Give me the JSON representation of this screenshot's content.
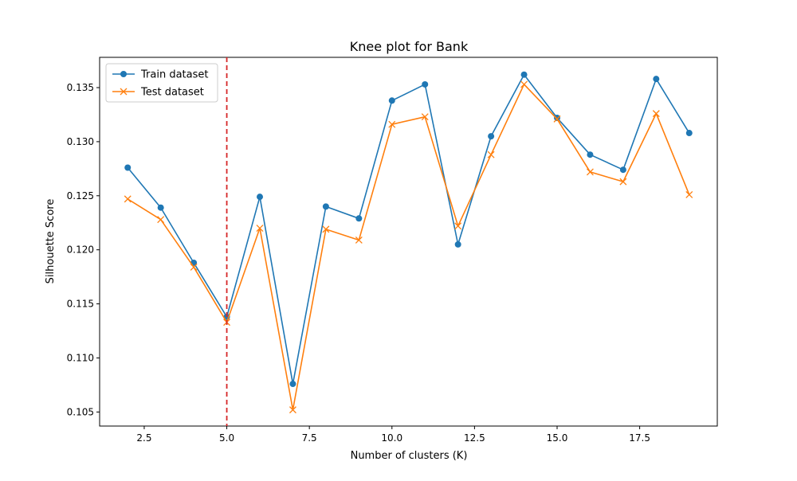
{
  "chart_data": {
    "type": "line",
    "title": "Knee plot for Bank",
    "xlabel": "Number of clusters (K)",
    "ylabel": "Silhouette Score",
    "xlim": [
      1.15,
      19.85
    ],
    "ylim": [
      0.1037,
      0.1378
    ],
    "xticks": [
      2.5,
      5.0,
      7.5,
      10.0,
      12.5,
      15.0,
      17.5
    ],
    "xtick_labels": [
      "2.5",
      "5.0",
      "7.5",
      "10.0",
      "12.5",
      "15.0",
      "17.5"
    ],
    "yticks": [
      0.105,
      0.11,
      0.115,
      0.12,
      0.125,
      0.13,
      0.135
    ],
    "ytick_labels": [
      "0.105",
      "0.110",
      "0.115",
      "0.120",
      "0.125",
      "0.130",
      "0.135"
    ],
    "grid": false,
    "legend_position": "upper-left",
    "x": [
      2,
      3,
      4,
      5,
      6,
      7,
      8,
      9,
      10,
      11,
      12,
      13,
      14,
      15,
      16,
      17,
      18,
      19
    ],
    "series": [
      {
        "name": "Train dataset",
        "color": "#1f77b4",
        "marker": "circle",
        "values": [
          0.1276,
          0.1239,
          0.1188,
          0.1138,
          0.1249,
          0.1076,
          0.124,
          0.1229,
          0.1338,
          0.1353,
          0.1205,
          0.1305,
          0.1362,
          0.1322,
          0.1288,
          0.1274,
          0.1358,
          0.1308
        ]
      },
      {
        "name": "Test dataset",
        "color": "#ff7f0e",
        "marker": "x",
        "values": [
          0.1247,
          0.1228,
          0.1184,
          0.1133,
          0.122,
          0.1052,
          0.1219,
          0.1209,
          0.1316,
          0.1323,
          0.1222,
          0.1288,
          0.1353,
          0.1321,
          0.1272,
          0.1263,
          0.1326,
          0.1251
        ]
      }
    ],
    "reference_line": {
      "orientation": "vertical",
      "x": 5,
      "color": "#d62728",
      "style": "dashed"
    }
  }
}
